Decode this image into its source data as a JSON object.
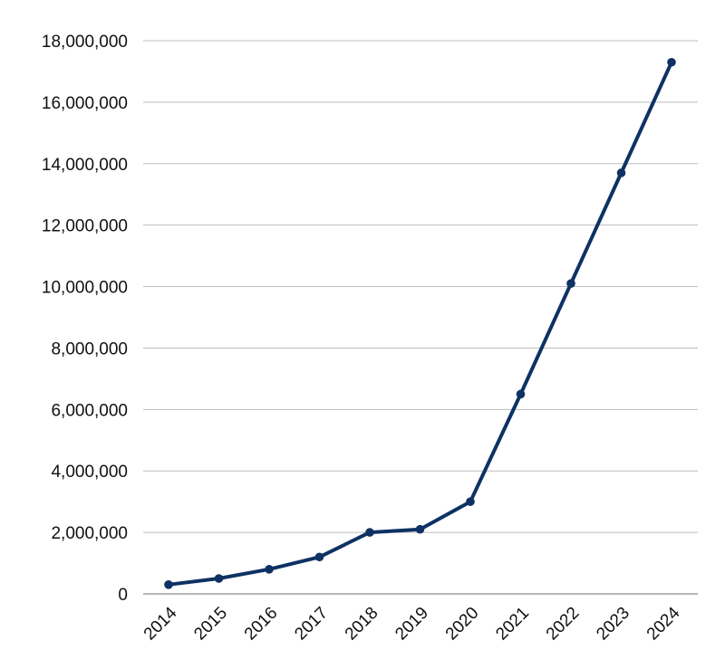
{
  "chart_data": {
    "type": "line",
    "title": "",
    "xlabel": "",
    "ylabel": "",
    "categories": [
      "2014",
      "2015",
      "2016",
      "2017",
      "2018",
      "2019",
      "2020",
      "2021",
      "2022",
      "2023",
      "2024"
    ],
    "series": [
      {
        "values": [
          300000,
          500000,
          800000,
          1200000,
          2000000,
          2100000,
          3000000,
          6500000,
          10100000,
          13700000,
          17300000
        ],
        "color": "#0d3263"
      }
    ],
    "ylim": [
      0,
      18000000
    ],
    "yticks": [
      0,
      2000000,
      4000000,
      6000000,
      8000000,
      10000000,
      12000000,
      14000000,
      16000000,
      18000000
    ],
    "ytick_labels": [
      "0",
      "2,000,000",
      "4,000,000",
      "6,000,000",
      "8,000,000",
      "10,000,000",
      "12,000,000",
      "14,000,000",
      "16,000,000",
      "18,000,000"
    ],
    "grid": true,
    "legend": "none",
    "markers": true
  }
}
